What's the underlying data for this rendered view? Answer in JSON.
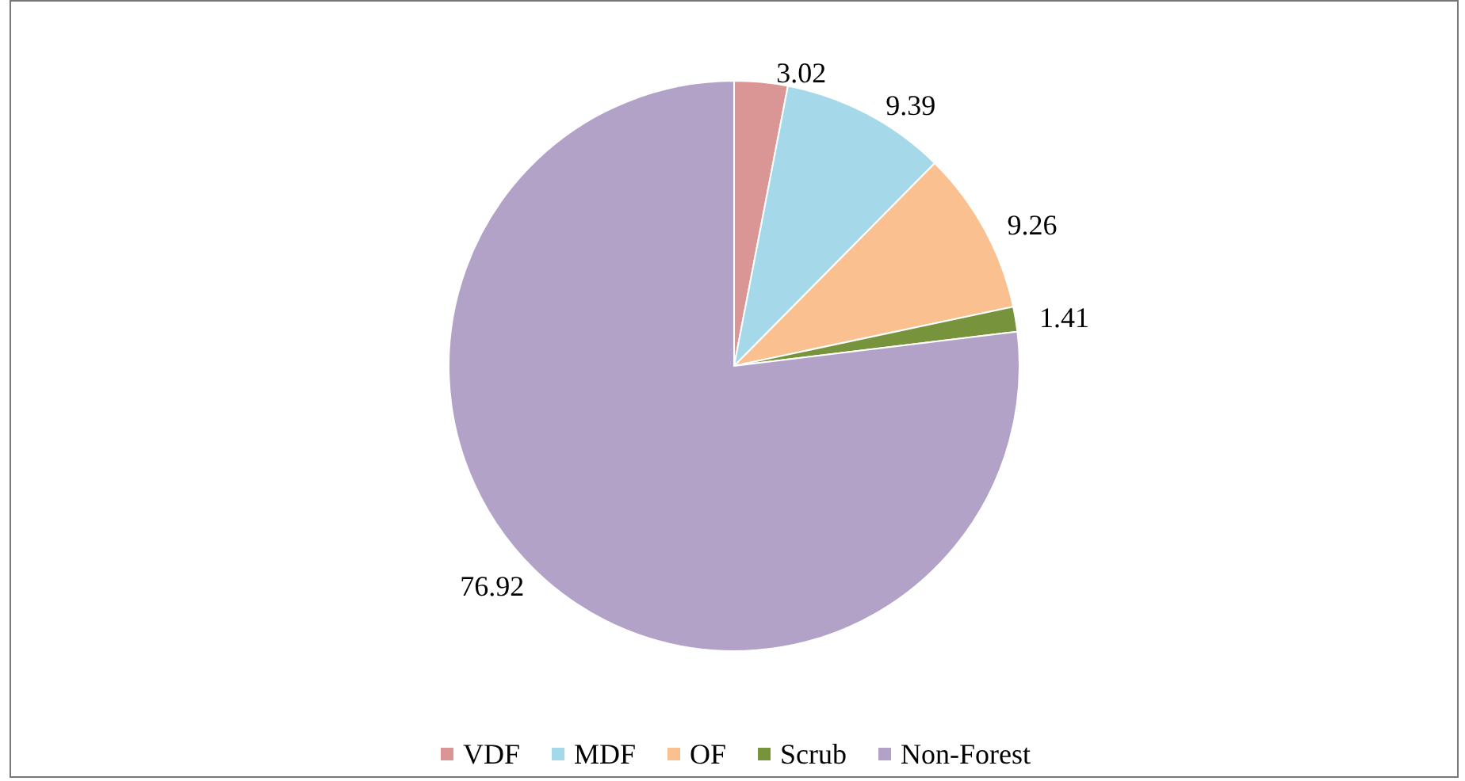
{
  "chart_data": {
    "type": "pie",
    "categories": [
      "VDF",
      "MDF",
      "OF",
      "Scrub",
      "Non-Forest"
    ],
    "values": [
      3.02,
      9.39,
      9.26,
      1.41,
      76.92
    ],
    "colors": [
      "#d99694",
      "#a5d8e8",
      "#fac090",
      "#77933c",
      "#b3a2c7"
    ],
    "data_labels": true,
    "legend": "bottom"
  }
}
